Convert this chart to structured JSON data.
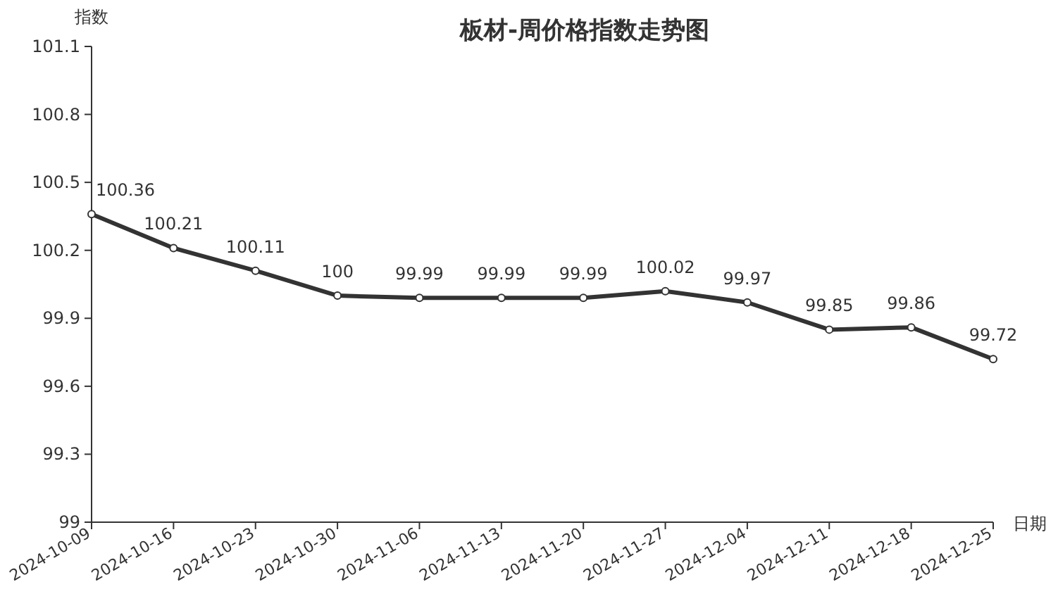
{
  "chart_data": {
    "type": "line",
    "title": "板材-周价格指数走势图",
    "xlabel": "日期",
    "ylabel": "指数",
    "categories": [
      "2024-10-09",
      "2024-10-16",
      "2024-10-23",
      "2024-10-30",
      "2024-11-06",
      "2024-11-13",
      "2024-11-20",
      "2024-11-27",
      "2024-12-04",
      "2024-12-11",
      "2024-12-18",
      "2024-12-25"
    ],
    "series": [
      {
        "color": "#333333",
        "values": [
          100.36,
          100.21,
          100.11,
          100,
          99.99,
          99.99,
          99.99,
          100.02,
          99.97,
          99.85,
          99.86,
          99.72
        ]
      }
    ],
    "ylim": [
      99,
      101.1
    ],
    "yticks": [
      99,
      99.3,
      99.6,
      99.9,
      100.2,
      100.5,
      100.8,
      101.1
    ],
    "data_labels": true,
    "marker": "circle",
    "line_style": "solid"
  }
}
